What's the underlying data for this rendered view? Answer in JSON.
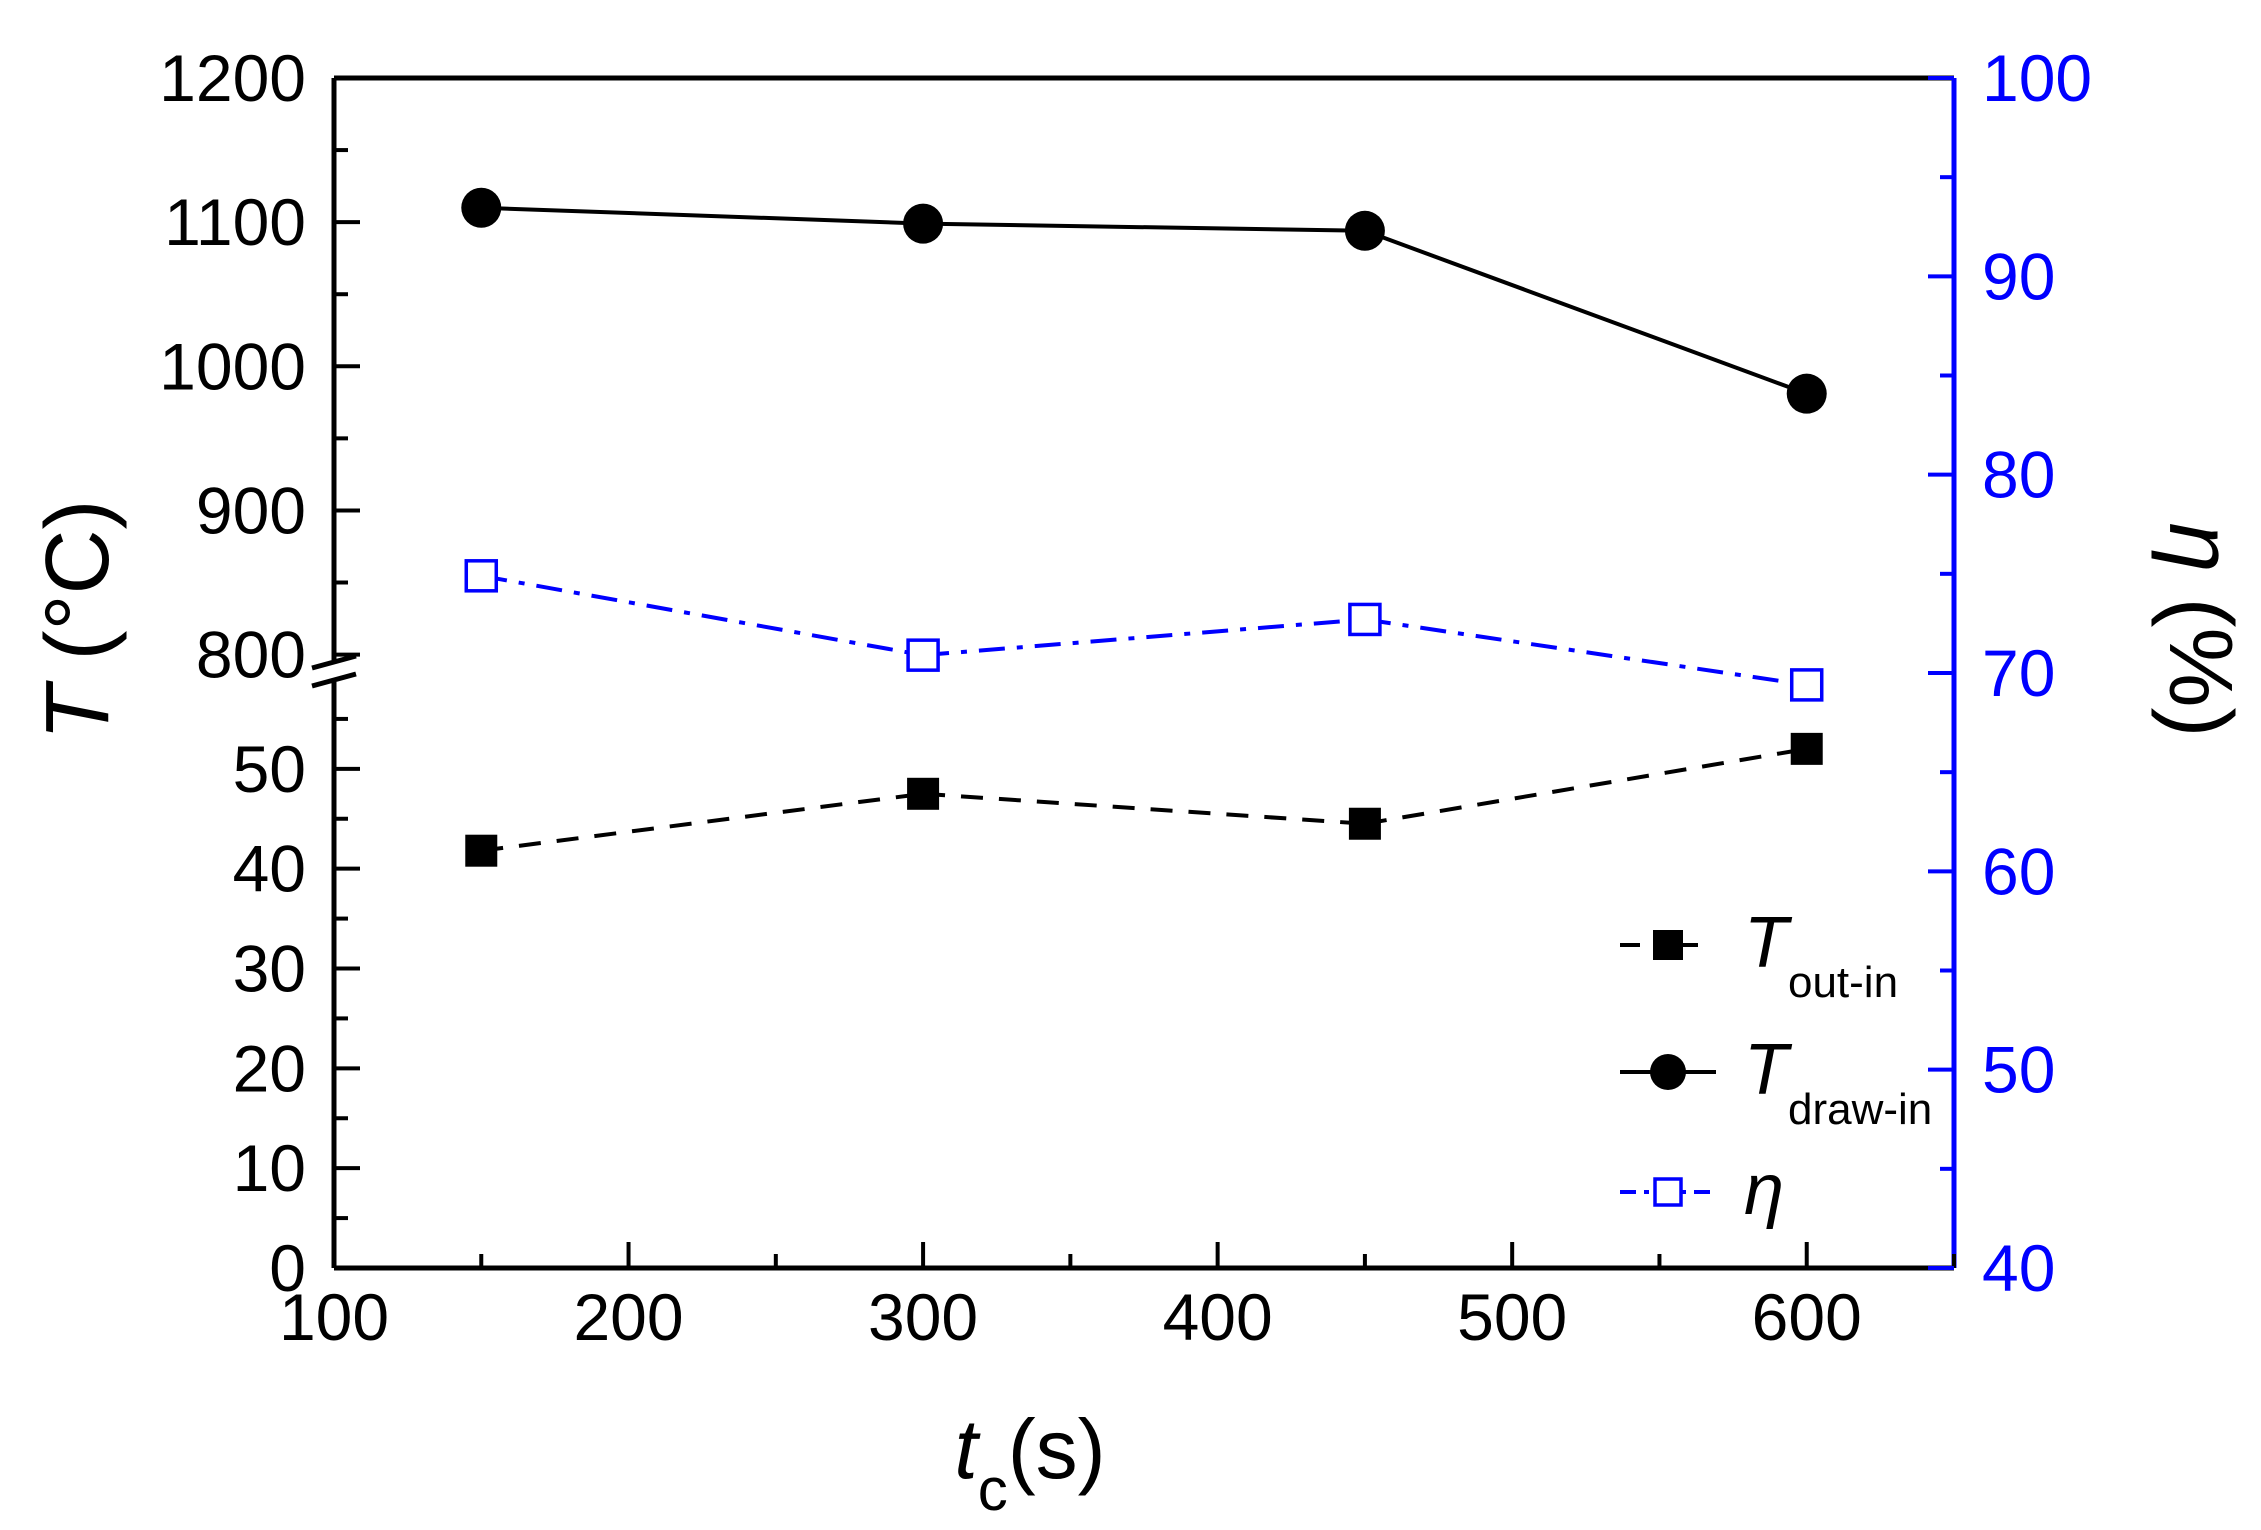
{
  "colors": {
    "black": "#000000",
    "blue": "#0000ff"
  },
  "chart_data": {
    "type": "line",
    "x_axis": {
      "label_main": "t",
      "label_sub": "c",
      "label_unit": "(s)",
      "range": [
        100,
        650
      ],
      "major_ticks": [
        100,
        200,
        300,
        400,
        500,
        600
      ],
      "minor_ticks": [
        150,
        250,
        350,
        450,
        550,
        650
      ]
    },
    "y_left_axis": {
      "label_main": "T",
      "label_unit": " (°C)",
      "broken": true,
      "lower_segment": {
        "range": [
          0,
          60
        ],
        "major_ticks": [
          0,
          10,
          20,
          30,
          40,
          50
        ],
        "minor_ticks": [
          5,
          15,
          25,
          35,
          45,
          55
        ]
      },
      "upper_segment": {
        "range": [
          790,
          1200
        ],
        "major_ticks": [
          800,
          900,
          1000,
          1100,
          1200
        ],
        "minor_ticks": [
          850,
          950,
          1050,
          1150
        ]
      }
    },
    "y_right_axis": {
      "label_main": "η",
      "label_unit": " (%)",
      "range": [
        40,
        100
      ],
      "major_ticks": [
        40,
        50,
        60,
        70,
        80,
        90,
        100
      ],
      "minor_ticks": [
        45,
        55,
        65,
        75,
        85,
        95
      ]
    },
    "series": [
      {
        "name": "T_out-in",
        "legend_main": "T",
        "legend_sub": "out-in",
        "axis": "left",
        "marker": "filled-square",
        "line": "dashed",
        "color": "#000000",
        "x": [
          150,
          300,
          450,
          600
        ],
        "y": [
          41.8,
          47.5,
          44.5,
          52
        ]
      },
      {
        "name": "T_draw-in",
        "legend_main": "T",
        "legend_sub": "draw-in",
        "axis": "left",
        "marker": "filled-circle",
        "line": "solid",
        "color": "#000000",
        "x": [
          150,
          300,
          450,
          600
        ],
        "y": [
          1110,
          1099,
          1094,
          981
        ]
      },
      {
        "name": "η",
        "legend_main": "η",
        "legend_sub": "",
        "axis": "right",
        "marker": "open-square",
        "line": "dash-dot",
        "color": "#0000ff",
        "x": [
          150,
          300,
          450,
          600
        ],
        "y": [
          74.9,
          70.9,
          72.7,
          69.4
        ]
      }
    ],
    "legend_position": "bottom-right"
  }
}
